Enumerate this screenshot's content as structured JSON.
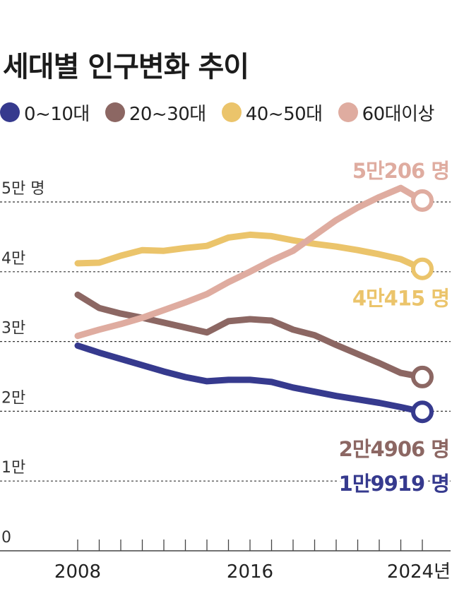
{
  "chart_data": {
    "type": "line",
    "title": "세대별 인구변화 추이",
    "x": [
      2008,
      2009,
      2010,
      2011,
      2012,
      2013,
      2014,
      2015,
      2016,
      2017,
      2018,
      2019,
      2020,
      2021,
      2022,
      2023,
      2024
    ],
    "x_tick_labels": [
      "2008",
      "2016",
      "2024년"
    ],
    "y_tick_labels": [
      "5만 명",
      "4만",
      "3만",
      "2만",
      "1만",
      "0"
    ],
    "y_tick_values": [
      50000,
      40000,
      30000,
      20000,
      10000,
      0
    ],
    "ylim": [
      0,
      50000
    ],
    "xlabel": "",
    "ylabel": "",
    "grid": true,
    "legend_position": "top",
    "series": [
      {
        "name": "0~10대",
        "color": "#363a8e",
        "values": [
          29400,
          28400,
          27500,
          26600,
          25700,
          24900,
          24300,
          24500,
          24500,
          24200,
          23400,
          22800,
          22200,
          21700,
          21200,
          20600,
          19919
        ],
        "end_label": "1만9919 명"
      },
      {
        "name": "20~30대",
        "color": "#8c6763",
        "values": [
          36700,
          34800,
          34000,
          33400,
          32700,
          32000,
          31300,
          32900,
          33200,
          33000,
          31700,
          30900,
          29500,
          28200,
          26900,
          25500,
          24906
        ],
        "end_label": "2만4906 명"
      },
      {
        "name": "40~50대",
        "color": "#ebc46b",
        "values": [
          41200,
          41300,
          42300,
          43100,
          43000,
          43400,
          43700,
          44900,
          45300,
          45100,
          44500,
          44000,
          43600,
          43100,
          42500,
          41800,
          40415
        ],
        "end_label": "4만415 명"
      },
      {
        "name": "60대이상",
        "color": "#dfaca0",
        "values": [
          30800,
          31700,
          32500,
          33400,
          34500,
          35600,
          36800,
          38500,
          40000,
          41600,
          43000,
          45200,
          47400,
          49200,
          50700,
          52000,
          50206
        ],
        "end_label": "5만206 명"
      }
    ]
  }
}
